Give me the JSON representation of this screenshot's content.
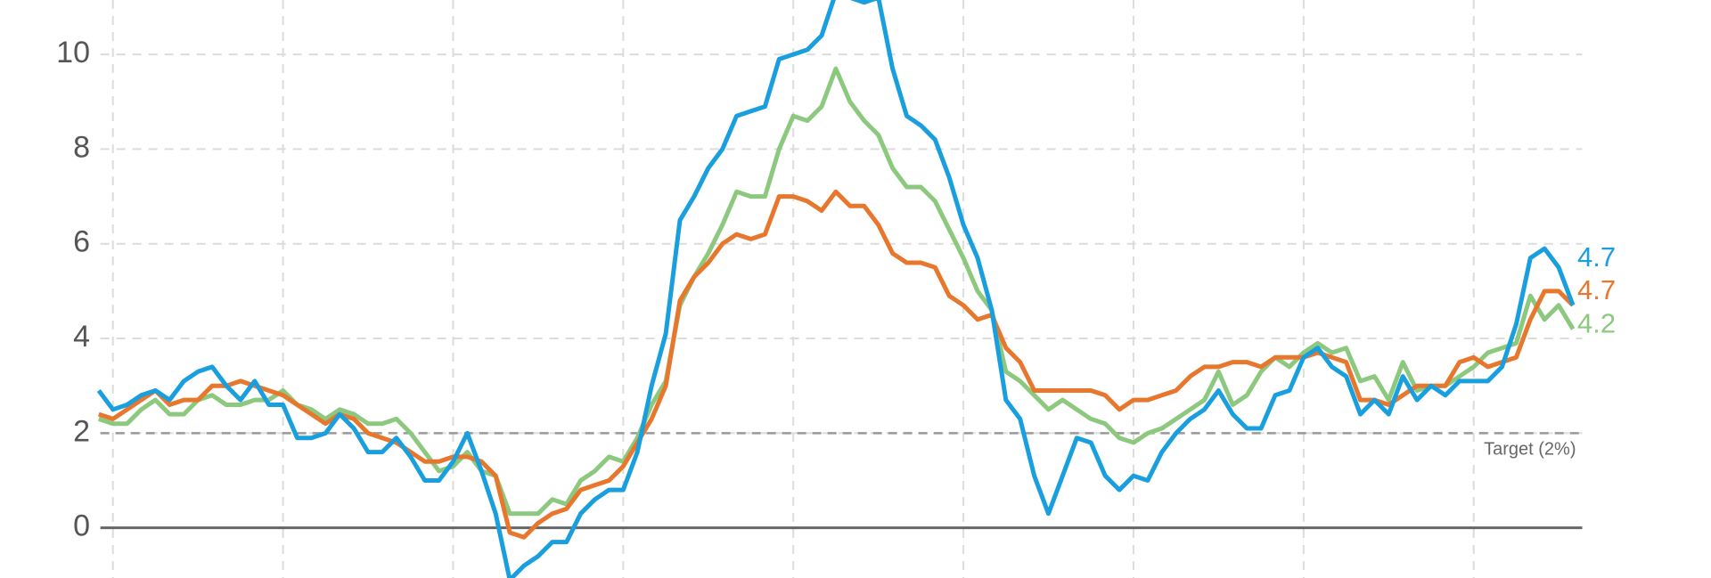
{
  "chart_data": {
    "type": "line",
    "ylim": [
      -1.06,
      11.15
    ],
    "yticks": [
      0,
      2,
      4,
      6,
      8,
      10
    ],
    "grid": true,
    "target": {
      "value": 2,
      "label": "Target (2%)"
    },
    "series": [
      {
        "color": "#1a9fde",
        "values": [
          2.9,
          2.5,
          2.6,
          2.8,
          2.9,
          2.7,
          3.1,
          3.3,
          3.4,
          3.0,
          2.7,
          3.1,
          2.6,
          2.6,
          1.9,
          1.9,
          2.0,
          2.4,
          2.1,
          1.6,
          1.6,
          1.9,
          1.5,
          1.0,
          1.0,
          1.4,
          2.0,
          1.2,
          0.3,
          -1.1,
          -0.8,
          -0.6,
          -0.3,
          -0.3,
          0.3,
          0.6,
          0.8,
          0.8,
          1.6,
          3.0,
          4.1,
          6.5,
          7.0,
          7.6,
          8.0,
          8.7,
          8.8,
          8.9,
          9.9,
          10.0,
          10.1,
          10.4,
          11.3,
          11.2,
          11.1,
          11.2,
          9.7,
          8.7,
          8.5,
          8.2,
          7.4,
          6.4,
          5.7,
          4.6,
          2.7,
          2.3,
          1.1,
          0.3,
          1.1,
          1.9,
          1.8,
          1.1,
          0.8,
          1.1,
          1.0,
          1.6,
          2.0,
          2.3,
          2.5,
          2.9,
          2.4,
          2.1,
          2.1,
          2.8,
          2.9,
          3.6,
          3.8,
          3.4,
          3.2,
          2.4,
          2.7,
          2.4,
          3.2,
          2.7,
          3.0,
          2.8,
          3.1,
          3.1,
          3.1,
          3.4,
          4.3,
          5.7,
          5.9,
          5.5,
          4.7
        ]
      },
      {
        "color": "#e8772e",
        "values": [
          2.4,
          2.3,
          2.5,
          2.7,
          2.9,
          2.6,
          2.7,
          2.7,
          3.0,
          3.0,
          3.1,
          3.0,
          2.9,
          2.8,
          2.6,
          2.4,
          2.2,
          2.4,
          2.3,
          2.0,
          1.9,
          1.8,
          1.6,
          1.4,
          1.4,
          1.5,
          1.5,
          1.4,
          1.1,
          -0.1,
          -0.2,
          0.1,
          0.3,
          0.4,
          0.8,
          0.9,
          1.0,
          1.3,
          1.8,
          2.3,
          3.0,
          4.8,
          5.3,
          5.6,
          6.0,
          6.2,
          6.1,
          6.2,
          7.0,
          7.0,
          6.9,
          6.7,
          7.1,
          6.8,
          6.8,
          6.4,
          5.8,
          5.6,
          5.6,
          5.5,
          4.9,
          4.7,
          4.4,
          4.5,
          3.8,
          3.5,
          2.9,
          2.9,
          2.9,
          2.9,
          2.9,
          2.8,
          2.5,
          2.7,
          2.7,
          2.8,
          2.9,
          3.2,
          3.4,
          3.4,
          3.5,
          3.5,
          3.4,
          3.6,
          3.6,
          3.6,
          3.7,
          3.6,
          3.5,
          2.7,
          2.7,
          2.6,
          2.8,
          3.0,
          3.0,
          3.0,
          3.5,
          3.6,
          3.4,
          3.5,
          3.6,
          4.4,
          5.0,
          5.0,
          4.7
        ]
      },
      {
        "color": "#8cc97f",
        "values": [
          2.3,
          2.2,
          2.2,
          2.5,
          2.7,
          2.4,
          2.4,
          2.7,
          2.8,
          2.6,
          2.6,
          2.7,
          2.7,
          2.9,
          2.6,
          2.5,
          2.3,
          2.5,
          2.4,
          2.2,
          2.2,
          2.3,
          2.0,
          1.6,
          1.2,
          1.3,
          1.6,
          1.2,
          1.1,
          0.3,
          0.3,
          0.3,
          0.6,
          0.5,
          1.0,
          1.2,
          1.5,
          1.4,
          1.9,
          2.6,
          3.1,
          4.7,
          5.3,
          5.8,
          6.4,
          7.1,
          7.0,
          7.0,
          8.0,
          8.7,
          8.6,
          8.9,
          9.7,
          9.0,
          8.6,
          8.3,
          7.6,
          7.2,
          7.2,
          6.9,
          6.3,
          5.7,
          5.0,
          4.6,
          3.3,
          3.1,
          2.8,
          2.5,
          2.7,
          2.5,
          2.3,
          2.2,
          1.9,
          1.8,
          2.0,
          2.1,
          2.3,
          2.5,
          2.7,
          3.3,
          2.6,
          2.8,
          3.3,
          3.6,
          3.4,
          3.7,
          3.9,
          3.7,
          3.8,
          3.1,
          3.2,
          2.7,
          3.5,
          2.9,
          3.0,
          3.0,
          3.2,
          3.4,
          3.7,
          3.8,
          3.9,
          4.9,
          4.4,
          4.7,
          4.2
        ]
      }
    ]
  }
}
